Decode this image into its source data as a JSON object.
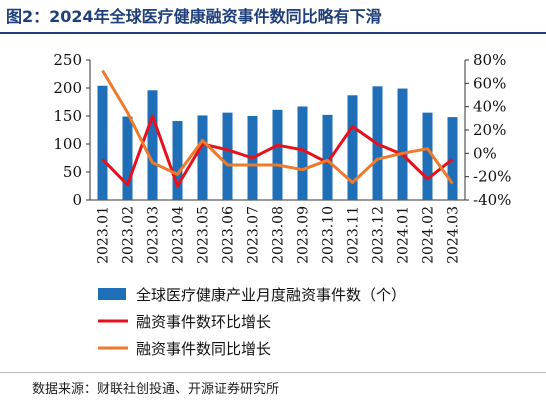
{
  "header": {
    "title": "图2：2024年全球医疗健康融资事件数同比略有下滑"
  },
  "footer": {
    "source": "数据来源：财联社创投通、开源证券研究所"
  },
  "chart_data": {
    "type": "bar",
    "categories": [
      "2023.01",
      "2023.02",
      "2023.03",
      "2023.04",
      "2023.05",
      "2023.06",
      "2023.07",
      "2023.08",
      "2023.09",
      "2023.10",
      "2023.11",
      "2023.12",
      "2024.01",
      "2024.02",
      "2024.03"
    ],
    "series": [
      {
        "name": "全球医疗健康产业月度融资事件数（个）",
        "type": "bar",
        "axis": "left",
        "color": "#1f6fb8",
        "values": [
          204,
          149,
          196,
          141,
          151,
          156,
          150,
          161,
          167,
          152,
          187,
          203,
          199,
          156,
          148
        ]
      },
      {
        "name": "融资事件数环比增长",
        "type": "line",
        "axis": "right",
        "color": "#e8101c",
        "values": [
          -5,
          -27,
          32,
          -28,
          8,
          3,
          -4,
          7,
          3,
          -8,
          23,
          8,
          -1,
          -22,
          -5
        ]
      },
      {
        "name": "融资事件数同比增长",
        "type": "line",
        "axis": "right",
        "color": "#ee7a2c",
        "values": [
          71,
          35,
          -8,
          -18,
          11,
          -10,
          -10,
          -10,
          -14,
          -6,
          -25,
          -5,
          0,
          4,
          -26
        ]
      }
    ],
    "y_left": {
      "ticks": [
        0,
        50,
        100,
        150,
        200,
        250
      ],
      "ylim": [
        0,
        250
      ]
    },
    "y_right": {
      "ticks": [
        "-40%",
        "-20%",
        "0%",
        "20%",
        "40%",
        "60%",
        "80%"
      ],
      "ylim": [
        -40,
        80
      ]
    },
    "legend": "bottom",
    "grid": false
  }
}
